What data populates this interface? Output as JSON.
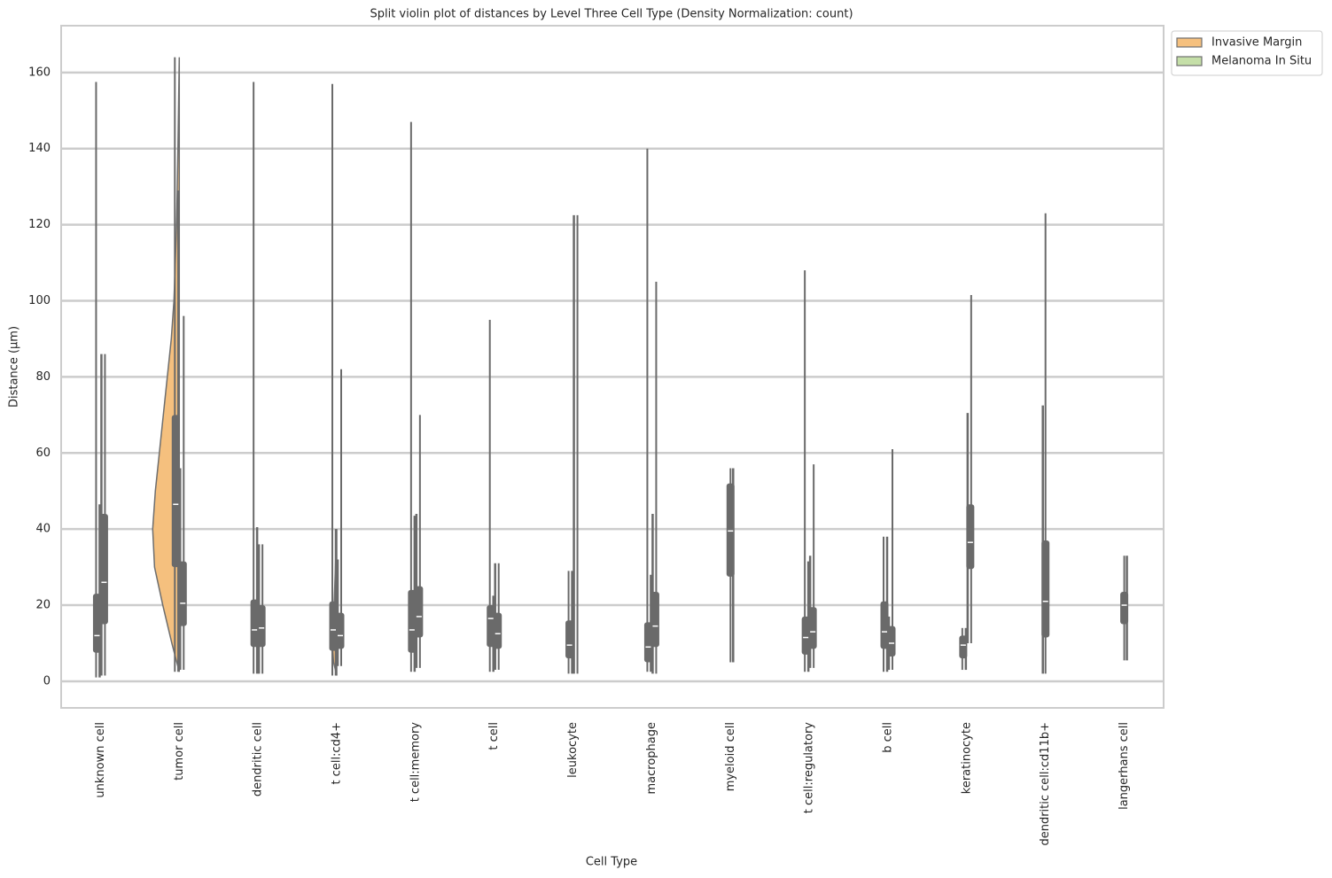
{
  "chart_data": {
    "type": "split-violin",
    "title": "Split violin plot of distances by Level Three Cell Type (Density Normalization: count)",
    "x_label": "Cell Type",
    "y_label": "Distance (µm)",
    "categories": [
      "unknown cell",
      "tumor cell",
      "dendritic cell",
      "t cell:cd4+",
      "t cell:memory",
      "t cell",
      "leukocyte",
      "macrophage",
      "myeloid cell",
      "t cell:regulatory",
      "b cell",
      "keratinocyte",
      "dendritic cell:cd11b+",
      "langerhans cell"
    ],
    "ylim": [
      -7,
      172.3
    ],
    "yticks": [
      0,
      20,
      40,
      60,
      80,
      100,
      120,
      140,
      160
    ],
    "grid": true,
    "legend": "upper right outside",
    "series": [
      {
        "name": "Invasive Margin",
        "color": "#f5c07e",
        "stats": [
          [
            1,
            7.5,
            12,
            23,
            46.5,
            157.5
          ],
          [
            2.5,
            30,
            46.5,
            70,
            129,
            164
          ],
          [
            2,
            9,
            13.5,
            21.5,
            40.5,
            157.5
          ],
          [
            1.5,
            8,
            13.5,
            21,
            40,
            157
          ],
          [
            2.5,
            7.5,
            13.5,
            24,
            43.5,
            147
          ],
          [
            2.5,
            9,
            16.5,
            20,
            22.5,
            95
          ],
          [
            2,
            6,
            9.5,
            16,
            29,
            29
          ],
          [
            2.5,
            5,
            9,
            15.5,
            28,
            140
          ],
          [
            5,
            27.5,
            39.5,
            52,
            56,
            56
          ],
          [
            2.5,
            7,
            11.5,
            17,
            31.5,
            108
          ],
          [
            2.5,
            8.5,
            13,
            21,
            38,
            38
          ],
          [
            3,
            6,
            9.5,
            12,
            14,
            14
          ],
          null,
          [
            5.5,
            15,
            20,
            23.5,
            33,
            33
          ]
        ],
        "violins": [
          null,
          [
            [
              2.5,
              0
            ],
            [
              10,
              0.28
            ],
            [
              20,
              0.62
            ],
            [
              30,
              0.93
            ],
            [
              40,
              1
            ],
            [
              50,
              0.9
            ],
            [
              60,
              0.75
            ],
            [
              70,
              0.6
            ],
            [
              80,
              0.45
            ],
            [
              90,
              0.3
            ],
            [
              100,
              0.2
            ],
            [
              120,
              0.1
            ],
            [
              140,
              0.05
            ],
            [
              164,
              0
            ]
          ],
          null,
          [
            [
              1.5,
              0
            ],
            [
              5,
              0.12
            ],
            [
              10,
              0.17
            ],
            [
              20,
              0.1
            ],
            [
              40,
              0
            ]
          ],
          null,
          null,
          null,
          null,
          null,
          null,
          null,
          null,
          null,
          null
        ]
      },
      {
        "name": "Melanoma In Situ",
        "color": "#c5dfa8",
        "stats": [
          [
            1.5,
            15,
            26,
            44,
            86,
            86
          ],
          [
            3,
            14.5,
            20.5,
            31.5,
            56,
            96
          ],
          [
            2,
            9,
            14,
            20,
            36,
            36
          ],
          [
            4,
            8.5,
            12,
            18,
            32,
            82
          ],
          [
            3.5,
            11.5,
            17,
            25,
            44,
            70
          ],
          [
            3,
            8.5,
            12.5,
            18,
            31,
            31
          ],
          [
            2,
            null,
            null,
            null,
            122.5,
            122.5
          ],
          [
            2,
            9,
            14.5,
            23.5,
            44,
            105
          ],
          null,
          [
            3.5,
            8.5,
            13,
            19.5,
            33,
            57
          ],
          [
            3,
            6.5,
            10,
            14.5,
            17,
            61
          ],
          [
            10,
            29.5,
            36.5,
            46.5,
            70.5,
            101.5
          ],
          [
            2,
            11.5,
            21,
            37,
            72.5,
            123
          ],
          null
        ]
      }
    ]
  }
}
